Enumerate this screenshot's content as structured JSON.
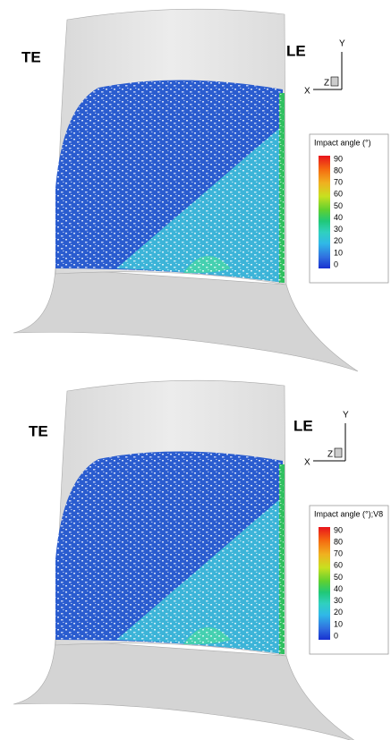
{
  "panels": [
    {
      "labels": {
        "te": "TE",
        "le": "LE"
      },
      "axes": {
        "y": "Y",
        "x": "X",
        "z": "Z"
      },
      "legend": {
        "title": "Impact angle (°)",
        "ticks": [
          90,
          80,
          70,
          60,
          50,
          40,
          30,
          20,
          10,
          0
        ]
      }
    },
    {
      "labels": {
        "te": "TE",
        "le": "LE"
      },
      "axes": {
        "y": "Y",
        "x": "X",
        "z": "Z"
      },
      "legend": {
        "title": "Impact angle (°);V8",
        "ticks": [
          90,
          80,
          70,
          60,
          50,
          40,
          30,
          20,
          10,
          0
        ]
      }
    }
  ]
}
